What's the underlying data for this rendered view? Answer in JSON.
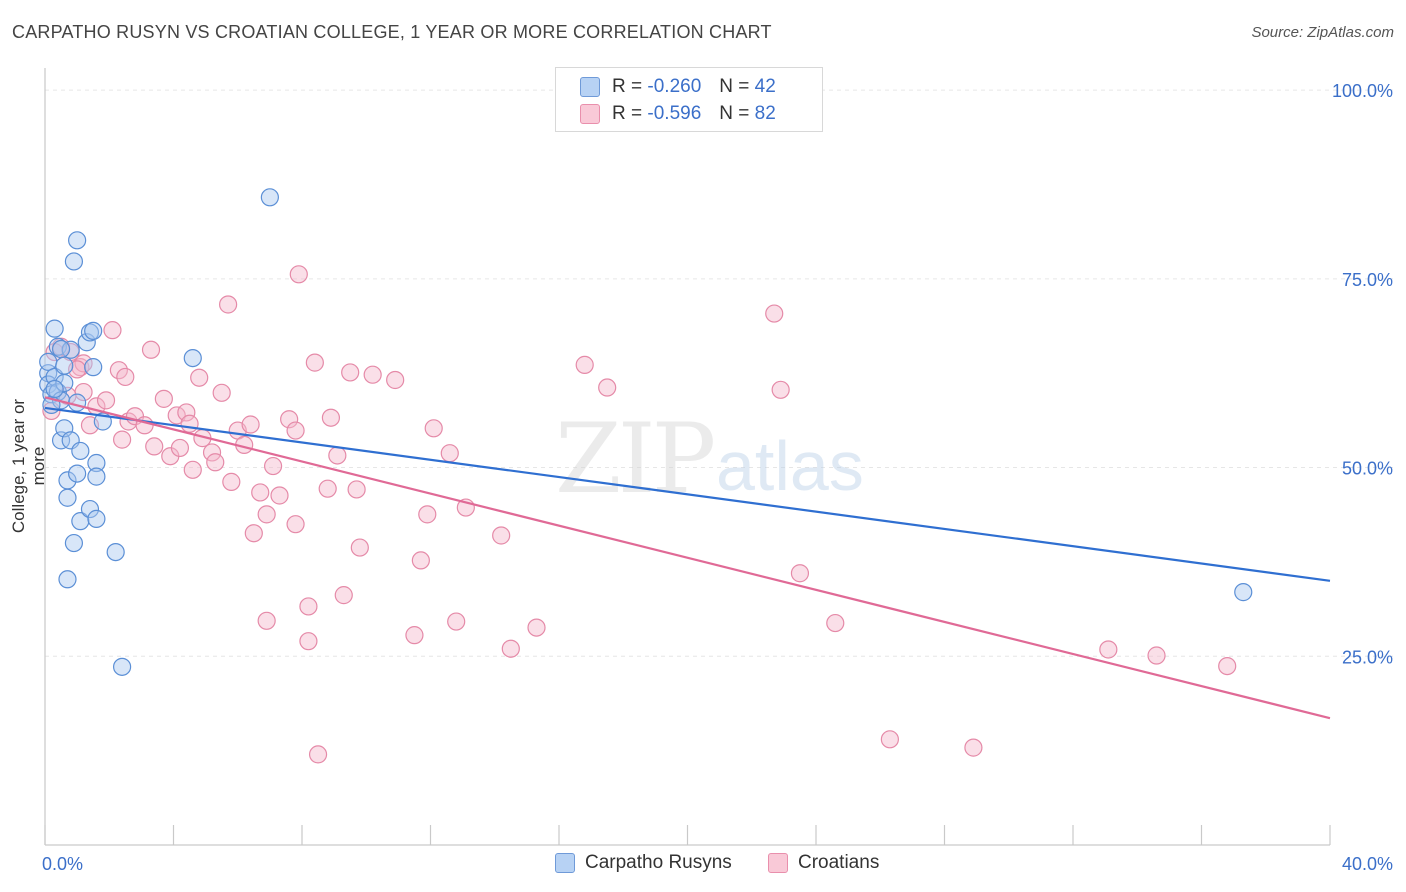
{
  "header": {
    "title": "CARPATHO RUSYN VS CROATIAN COLLEGE, 1 YEAR OR MORE CORRELATION CHART",
    "source": "Source: ZipAtlas.com"
  },
  "legend": {
    "rows": [
      {
        "r_label": "R =",
        "r_value": "-0.260",
        "n_label": "N =",
        "n_value": "42"
      },
      {
        "r_label": "R =",
        "r_value": "-0.596",
        "n_label": "N =",
        "n_value": "82"
      }
    ]
  },
  "watermark": {
    "zip": "ZIP",
    "atlas": "atlas"
  },
  "colors": {
    "blue_fill": "#a9c8f0",
    "blue_stroke": "#5b8fd6",
    "blue_line": "#2f6fd1",
    "pink_fill": "#f5b8cb",
    "pink_stroke": "#e58aa8",
    "pink_line": "#e06a96",
    "tick_label": "#3b6fc9",
    "grid": "#e6e6e6"
  },
  "chart_data": {
    "type": "scatter",
    "title": "CARPATHO RUSYN VS CROATIAN COLLEGE, 1 YEAR OR MORE CORRELATION CHART",
    "xlabel": "",
    "ylabel": "College, 1 year or more",
    "xlim": [
      0,
      40
    ],
    "ylim": [
      0,
      102
    ],
    "x_tick_labels": [
      "0.0%",
      "40.0%"
    ],
    "y_ticks": [
      25,
      50,
      75,
      100
    ],
    "y_tick_labels": [
      "25.0%",
      "50.0%",
      "75.0%",
      "100.0%"
    ],
    "grid": true,
    "legend_position": "bottom-center",
    "series": [
      {
        "name": "Carpatho Rusyns",
        "R": -0.26,
        "N": 42,
        "trend": {
          "x": [
            0,
            40
          ],
          "y": [
            57.9,
            35.0
          ]
        },
        "points": [
          [
            0.1,
            62.5
          ],
          [
            0.1,
            61.0
          ],
          [
            0.1,
            64.0
          ],
          [
            0.2,
            59.7
          ],
          [
            0.3,
            68.4
          ],
          [
            0.3,
            62.0
          ],
          [
            0.4,
            66.0
          ],
          [
            0.4,
            60.0
          ],
          [
            0.5,
            58.9
          ],
          [
            0.5,
            53.6
          ],
          [
            0.6,
            61.2
          ],
          [
            0.6,
            63.5
          ],
          [
            0.6,
            55.2
          ],
          [
            0.7,
            46.0
          ],
          [
            0.7,
            35.2
          ],
          [
            0.7,
            48.3
          ],
          [
            0.8,
            53.6
          ],
          [
            0.8,
            65.6
          ],
          [
            0.9,
            77.3
          ],
          [
            0.9,
            40.0
          ],
          [
            1.0,
            49.2
          ],
          [
            1.0,
            58.6
          ],
          [
            1.0,
            80.1
          ],
          [
            1.1,
            42.9
          ],
          [
            1.1,
            52.2
          ],
          [
            1.3,
            66.6
          ],
          [
            1.4,
            67.9
          ],
          [
            1.4,
            44.5
          ],
          [
            1.5,
            63.3
          ],
          [
            1.5,
            68.1
          ],
          [
            1.6,
            43.2
          ],
          [
            1.6,
            50.6
          ],
          [
            1.6,
            48.8
          ],
          [
            1.8,
            56.1
          ],
          [
            2.2,
            38.8
          ],
          [
            2.4,
            23.6
          ],
          [
            4.6,
            64.5
          ],
          [
            7.0,
            85.8
          ],
          [
            37.3,
            33.5
          ],
          [
            0.2,
            58.3
          ],
          [
            0.3,
            60.4
          ],
          [
            0.5,
            65.7
          ]
        ]
      },
      {
        "name": "Croatians",
        "R": -0.596,
        "N": 82,
        "trend": {
          "x": [
            0,
            40
          ],
          "y": [
            59.3,
            16.8
          ]
        },
        "points": [
          [
            0.2,
            57.5
          ],
          [
            0.5,
            66.0
          ],
          [
            0.8,
            65.3
          ],
          [
            1.1,
            63.3
          ],
          [
            1.2,
            63.8
          ],
          [
            1.2,
            60.0
          ],
          [
            1.4,
            55.6
          ],
          [
            1.6,
            58.1
          ],
          [
            1.9,
            58.9
          ],
          [
            2.1,
            68.2
          ],
          [
            2.3,
            62.9
          ],
          [
            2.4,
            53.7
          ],
          [
            2.5,
            62.0
          ],
          [
            2.6,
            56.1
          ],
          [
            2.8,
            56.8
          ],
          [
            3.1,
            55.6
          ],
          [
            3.3,
            65.6
          ],
          [
            3.4,
            52.8
          ],
          [
            3.7,
            59.1
          ],
          [
            3.9,
            51.5
          ],
          [
            4.1,
            56.9
          ],
          [
            4.2,
            52.6
          ],
          [
            4.4,
            57.3
          ],
          [
            4.5,
            55.8
          ],
          [
            4.6,
            49.7
          ],
          [
            4.8,
            61.9
          ],
          [
            4.9,
            53.9
          ],
          [
            5.2,
            52.0
          ],
          [
            5.3,
            50.7
          ],
          [
            5.5,
            59.9
          ],
          [
            5.7,
            71.6
          ],
          [
            5.8,
            48.1
          ],
          [
            6.0,
            54.9
          ],
          [
            6.2,
            53.0
          ],
          [
            6.4,
            55.7
          ],
          [
            6.5,
            41.3
          ],
          [
            6.7,
            46.7
          ],
          [
            6.9,
            29.7
          ],
          [
            6.9,
            43.8
          ],
          [
            7.1,
            50.2
          ],
          [
            7.3,
            46.3
          ],
          [
            7.6,
            56.4
          ],
          [
            7.8,
            54.9
          ],
          [
            7.8,
            42.5
          ],
          [
            7.9,
            75.6
          ],
          [
            8.2,
            31.6
          ],
          [
            8.2,
            27.0
          ],
          [
            8.4,
            63.9
          ],
          [
            8.5,
            12.0
          ],
          [
            8.8,
            47.2
          ],
          [
            8.9,
            56.6
          ],
          [
            9.1,
            51.6
          ],
          [
            9.3,
            33.1
          ],
          [
            9.5,
            62.6
          ],
          [
            9.7,
            47.1
          ],
          [
            9.8,
            39.4
          ],
          [
            10.2,
            62.3
          ],
          [
            10.9,
            61.6
          ],
          [
            11.5,
            27.8
          ],
          [
            11.7,
            37.7
          ],
          [
            11.9,
            43.8
          ],
          [
            12.1,
            55.2
          ],
          [
            12.6,
            51.9
          ],
          [
            12.8,
            29.6
          ],
          [
            13.1,
            44.7
          ],
          [
            14.2,
            41.0
          ],
          [
            14.5,
            26.0
          ],
          [
            15.3,
            28.8
          ],
          [
            16.8,
            63.6
          ],
          [
            17.5,
            60.6
          ],
          [
            22.7,
            70.4
          ],
          [
            22.9,
            60.3
          ],
          [
            23.5,
            36.0
          ],
          [
            24.6,
            29.4
          ],
          [
            26.3,
            14.0
          ],
          [
            28.9,
            12.9
          ],
          [
            33.1,
            25.9
          ],
          [
            34.6,
            25.1
          ],
          [
            36.8,
            23.7
          ],
          [
            0.7,
            59.5
          ],
          [
            1.0,
            63.0
          ],
          [
            0.3,
            65.3
          ]
        ]
      }
    ]
  },
  "bottom_legend": {
    "items": [
      {
        "label": "Carpatho Rusyns"
      },
      {
        "label": "Croatians"
      }
    ]
  }
}
